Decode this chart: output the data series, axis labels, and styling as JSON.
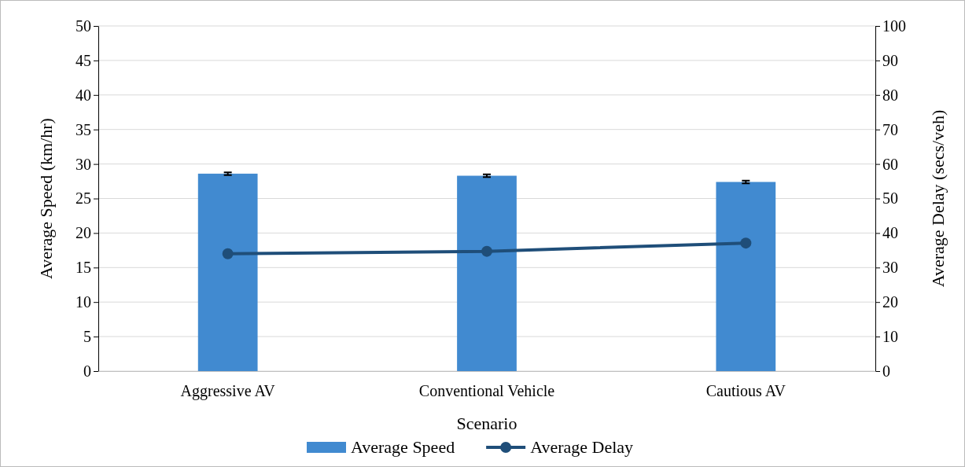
{
  "chart_data": {
    "type": "bar",
    "xlabel": "Scenario",
    "ylabel": "Average Speed (km/hr)",
    "y2label": "Average Delay (secs/veh)",
    "categories": [
      "Aggressive AV",
      "Conventional Vehicle",
      "Cautious AV"
    ],
    "series": [
      {
        "name": "Average Speed",
        "color": "#418ad0",
        "values": [
          28.6,
          28.3,
          27.4
        ],
        "errors": [
          0.2,
          0.2,
          0.2
        ]
      },
      {
        "name": "Average Delay",
        "type": "line",
        "axis": "y2",
        "color": "#1f4e79",
        "values": [
          34,
          34.7,
          37.1
        ],
        "marker": "circle"
      }
    ],
    "ylim": [
      0,
      50
    ],
    "yticks": [
      0,
      5,
      10,
      15,
      20,
      25,
      30,
      35,
      40,
      45,
      50
    ],
    "y2lim": [
      0,
      100
    ],
    "y2ticks": [
      0,
      10,
      20,
      30,
      40,
      50,
      60,
      70,
      80,
      90,
      100
    ],
    "grid": "y",
    "legend": "bottom"
  }
}
